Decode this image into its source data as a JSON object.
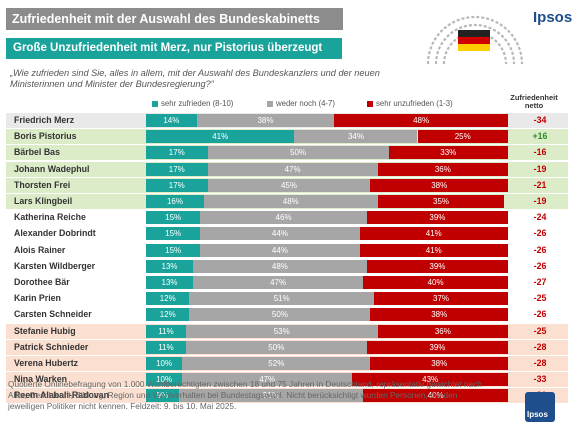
{
  "header": {
    "title": "Zufriedenheit mit der Auswahl des Bundeskabinetts",
    "subtitle": "Große Unzufriedenheit mit Merz, nur Pistorius überzeugt",
    "brand": "Ipsos",
    "question": "„Wie zufrieden sind Sie, alles in allem, mit der Auswahl des Bundeskanzlers und der neuen Ministerinnen und Minister der Bundesregierung?“"
  },
  "colors": {
    "title_bg": "#8c8c8c",
    "subtitle_bg": "#1aa39b",
    "satisfied": "#1aa39b",
    "neither": "#a6a6a6",
    "dissatisfied": "#c00000",
    "net_negative": "#c00000",
    "net_positive": "#2e8b2e",
    "row_grey": "#e9e9e9",
    "row_green": "#dcecc8",
    "row_white": "#ffffff",
    "row_salmon": "#fbe0d1"
  },
  "chart_data": {
    "type": "bar",
    "stacked": true,
    "orientation": "horizontal",
    "legend": {
      "items": [
        "sehr zufrieden (8-10)",
        "weder noch (4-7)",
        "sehr unzufrieden (1-3)"
      ],
      "placement": "top"
    },
    "net_header": "Zufriedenheit netto",
    "categories": [
      "Friedrich Merz",
      "Boris Pistorius",
      "Bärbel Bas",
      "Johann Wadephul",
      "Thorsten Frei",
      "Lars Klingbeil",
      "Katherina Reiche",
      "Alexander Dobrindt",
      "Alois Rainer",
      "Karsten Wildberger",
      "Dorothee Bär",
      "Karin Prien",
      "Carsten Schneider",
      "Stefanie Hubig",
      "Patrick Schnieder",
      "Verena Hubertz",
      "Nina Warken",
      "Reem Alabali-Radovan"
    ],
    "series": [
      {
        "name": "sehr zufrieden (8-10)",
        "values": [
          14,
          41,
          17,
          17,
          17,
          16,
          15,
          15,
          15,
          13,
          13,
          12,
          12,
          11,
          11,
          10,
          10,
          9
        ]
      },
      {
        "name": "weder noch (4-7)",
        "values": [
          38,
          34,
          50,
          47,
          45,
          48,
          46,
          44,
          44,
          48,
          47,
          51,
          50,
          53,
          50,
          52,
          47,
          51
        ]
      },
      {
        "name": "sehr unzufrieden (1-3)",
        "values": [
          48,
          25,
          33,
          36,
          38,
          35,
          39,
          41,
          41,
          39,
          40,
          37,
          38,
          36,
          39,
          38,
          43,
          40
        ]
      }
    ],
    "net": [
      "-34",
      "+16",
      "-16",
      "-19",
      "-21",
      "-19",
      "-24",
      "-26",
      "-26",
      "-26",
      "-27",
      "-25",
      "-26",
      "-25",
      "-28",
      "-28",
      "-33",
      "-31"
    ],
    "row_groups": [
      "grey",
      "green",
      "green",
      "green",
      "green",
      "green",
      "white",
      "white",
      "white",
      "white",
      "white",
      "white",
      "white",
      "salmon",
      "salmon",
      "salmon",
      "salmon",
      "salmon"
    ],
    "xlim": [
      0,
      100
    ]
  },
  "footer": {
    "note": "Quotierte Onlinebefragung von 1.000 Wahlberechtigten zwischen 18 und 75 Jahren in Deutschland, repräsentativ gewichtet nach Alter, Geschlecht, Bildung, Region und Wahlverhalten bei Bundestagswahl. Nicht berücksichtigt wurden Personen, die den jeweiligen Politiker nicht kennen. Feldzeit: 9. bis 10. Mai 2025.",
    "logo_text": "Ipsos"
  }
}
